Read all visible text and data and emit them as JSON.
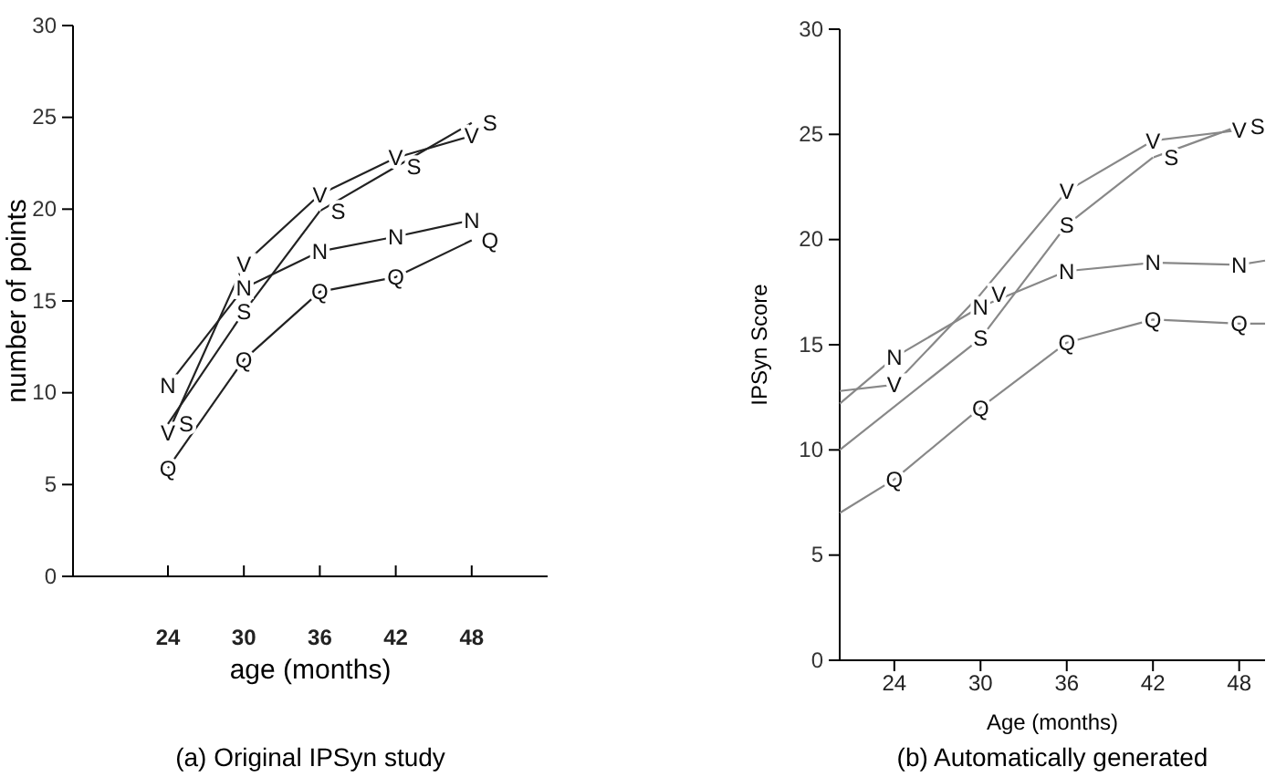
{
  "chart_data": [
    {
      "type": "line",
      "xlabel": "age (months)",
      "ylabel": "number of points",
      "xlim": [
        16.5,
        54
      ],
      "xticks": [
        24,
        30,
        36,
        42,
        48
      ],
      "ylim": [
        0,
        30
      ],
      "yticks": [
        0,
        5,
        10,
        15,
        20,
        25,
        30
      ],
      "grid": false,
      "legend": false,
      "marker": "none",
      "annotations": [
        "(a) Original IPSyn study"
      ],
      "series": [
        {
          "name": "N",
          "color": "#222222",
          "x": [
            24,
            30,
            36,
            42,
            48
          ],
          "values": [
            10.4,
            15.7,
            17.7,
            18.5,
            19.4
          ]
        },
        {
          "name": "V",
          "color": "#222222",
          "x": [
            24,
            30,
            36,
            42,
            48
          ],
          "values": [
            7.8,
            17.0,
            20.8,
            22.8,
            24.0
          ]
        },
        {
          "name": "S",
          "color": "#222222",
          "x": [
            24,
            30,
            36,
            42,
            48
          ],
          "values": [
            8.3,
            14.4,
            19.9,
            22.3,
            24.7
          ]
        },
        {
          "name": "Q",
          "color": "#222222",
          "x": [
            24,
            30,
            36,
            42,
            48
          ],
          "values": [
            5.9,
            11.8,
            15.5,
            16.3,
            18.3
          ]
        }
      ]
    },
    {
      "type": "line",
      "xlabel": "Age (months)",
      "ylabel": "IPSyn Score",
      "xlim": [
        20.2,
        49.8
      ],
      "xticks": [
        24,
        30,
        36,
        42,
        48
      ],
      "ylim": [
        0,
        30
      ],
      "yticks": [
        0,
        5,
        10,
        15,
        20,
        25,
        30
      ],
      "grid": false,
      "legend": false,
      "marker": "none",
      "annotations": [
        "(b) Automatically generated"
      ],
      "series": [
        {
          "name": "N",
          "color": "#888888",
          "x": [
            20.2,
            24,
            30,
            36,
            42,
            48,
            49.8
          ],
          "values": [
            12.2,
            14.4,
            16.8,
            18.5,
            18.9,
            18.8,
            19.0
          ]
        },
        {
          "name": "V",
          "color": "#888888",
          "x": [
            20.2,
            24,
            30,
            36,
            42,
            48,
            49.8
          ],
          "values": [
            12.8,
            13.1,
            17.4,
            22.3,
            24.7,
            25.2,
            25.4
          ]
        },
        {
          "name": "S",
          "color": "#888888",
          "x": [
            20.2,
            30,
            36,
            42,
            48,
            49.8
          ],
          "values": [
            10.0,
            15.3,
            20.7,
            23.9,
            25.4,
            25.5
          ]
        },
        {
          "name": "Q",
          "color": "#888888",
          "x": [
            20.2,
            24,
            30,
            36,
            42,
            48,
            49.8
          ],
          "values": [
            7.0,
            8.6,
            12.0,
            15.1,
            16.2,
            16.0,
            16.0
          ]
        }
      ]
    }
  ]
}
